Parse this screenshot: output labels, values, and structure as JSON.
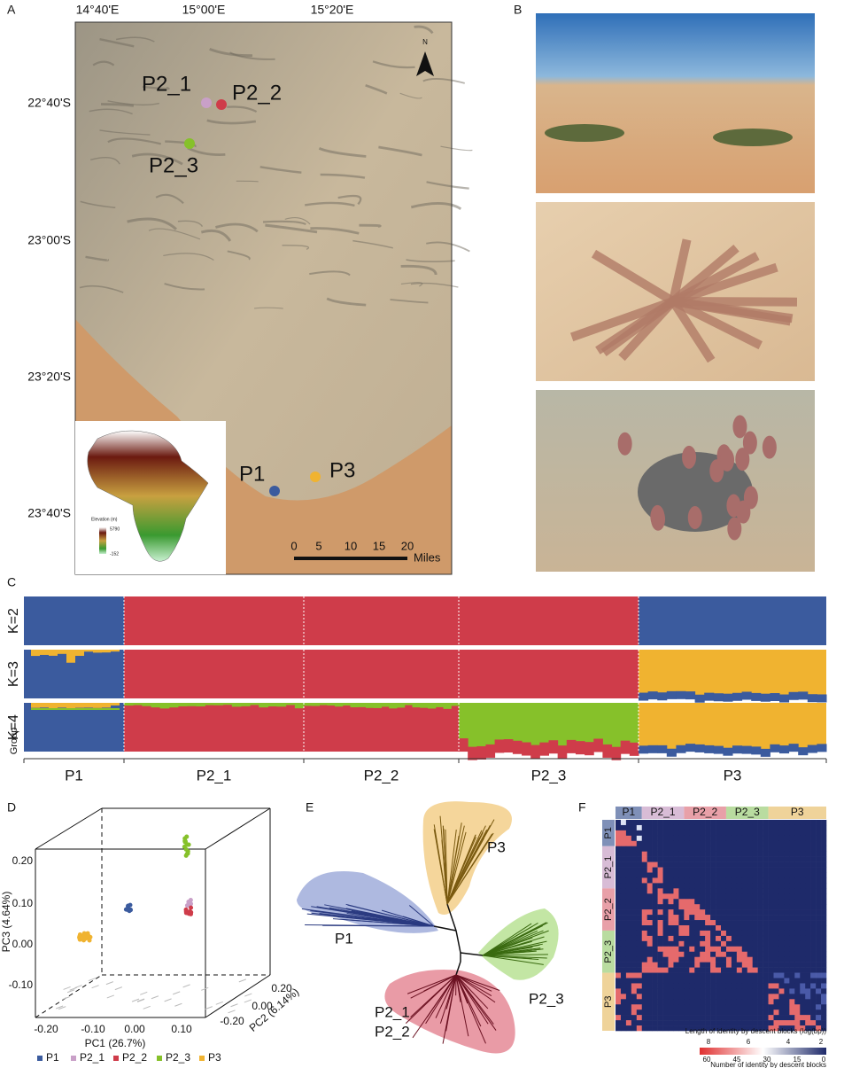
{
  "panel_a": {
    "label": "A",
    "longitude_ticks": [
      "14°40'E",
      "15°00'E",
      "15°20'E"
    ],
    "latitude_ticks": [
      "22°40'S",
      "23°00'S",
      "23°20'S",
      "23°40'S"
    ],
    "sites": [
      "P2_1",
      "P2_2",
      "P2_3",
      "P1",
      "P3"
    ],
    "north": "N",
    "scale_ticks": [
      "0",
      "5",
      "10",
      "15",
      "20"
    ],
    "scale_unit": "Miles",
    "inset": {
      "title": "Elevation (m)",
      "max": "5790",
      "min": "-152"
    }
  },
  "panel_b": {
    "label": "B"
  },
  "panel_c": {
    "label": "C",
    "k_labels": [
      "K=2",
      "K=3",
      "K=4"
    ],
    "group_title": "Group",
    "groups": [
      "P1",
      "P2_1",
      "P2_2",
      "P2_3",
      "P3"
    ]
  },
  "panel_d": {
    "label": "D",
    "y_axis_label": "PC3 (4.64%)",
    "x_axis_label": "PC1 (26.7%)",
    "z_axis_label": "PC2 (6.14%)",
    "y_ticks": [
      "0.20",
      "0.10",
      "0.00",
      "-0.10"
    ],
    "x_ticks": [
      "-0.20",
      "-0.10",
      "0.00",
      "0.10"
    ],
    "z_ticks": [
      "0.20",
      "0.00",
      "-0.20"
    ],
    "legend": [
      "P1",
      "P2_1",
      "P2_2",
      "P2_3",
      "P3"
    ]
  },
  "panel_e": {
    "label": "E",
    "clades": [
      "P1",
      "P3",
      "P2_3",
      "P2_1",
      "P2_2"
    ]
  },
  "panel_f": {
    "label": "F",
    "groups": [
      "P1",
      "P2_1",
      "P2_2",
      "P2_3",
      "P3"
    ],
    "length_title": "Length of identity by descent blocks (log(bp))",
    "length_ticks": [
      "8",
      "6",
      "4",
      "2"
    ],
    "number_ticks": [
      "60",
      "45",
      "30",
      "15",
      "0"
    ],
    "number_title": "Number of identity by descent blocks"
  }
}
